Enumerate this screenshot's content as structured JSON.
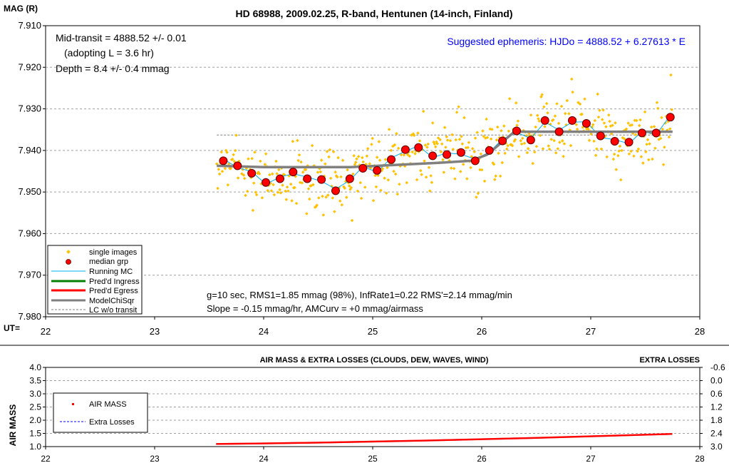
{
  "main_chart": {
    "title": "HD 68988, 2009.02.25, R-band, Hentunen (14-inch, Finland)",
    "y_label": "MAG (R)",
    "x_prefix": "UT=",
    "annotations": {
      "mid_transit": "Mid-transit = 4888.52 +/- 0.01",
      "adopting": "(adopting L = 3.6 hr)",
      "depth": "Depth = 8.4 +/- 0.4 mmag",
      "ephemeris": "Suggested ephemeris: HJDo = 4888.52 + 6.27613 * E",
      "stats1": "g=10 sec, RMS1=1.85 mmag (98%), InfRate1=0.22 RMS'=2.14 mmag/min",
      "stats2": "Slope = -0.15 mmag/hr, AMCurv = +0 mmag/airmass"
    },
    "legend": [
      "single images",
      "median grp",
      "Running MC",
      "Pred'd Ingress",
      "Pred'd Egress",
      "ModelChiSqr",
      "LC w/o transit"
    ],
    "colors": {
      "single": "#ffc000",
      "median": "#ff0000",
      "running": "#00b0f0",
      "ingress": "#008000",
      "egress": "#ff0000",
      "model": "#808080",
      "nolc": "#808080",
      "ephemeris": "#0000ff"
    }
  },
  "chart_data": [
    {
      "type": "scatter",
      "title": "HD 68988, 2009.02.25, R-band, Hentunen (14-inch, Finland)",
      "ylabel": "MAG (R)",
      "xlabel": "UT=",
      "xlim": [
        22,
        28
      ],
      "ylim": [
        7.91,
        7.98
      ],
      "y_inverted": true,
      "x_ticks": [
        "22",
        "23",
        "24",
        "25",
        "26",
        "27",
        "28"
      ],
      "y_ticks": [
        "7.910",
        "7.920",
        "7.930",
        "7.940",
        "7.950",
        "7.960",
        "7.970",
        "7.980"
      ],
      "grid": true,
      "legend_position": "bottom-left",
      "series": [
        {
          "name": "median grp",
          "x": [
            23.63,
            23.76,
            23.89,
            24.02,
            24.15,
            24.27,
            24.4,
            24.53,
            24.66,
            24.79,
            24.91,
            25.04,
            25.17,
            25.3,
            25.42,
            25.55,
            25.68,
            25.81,
            25.94,
            26.07,
            26.19,
            26.32,
            26.45,
            26.58,
            26.71,
            26.83,
            26.96,
            27.09,
            27.22,
            27.35,
            27.47,
            27.6,
            27.73
          ],
          "y": [
            7.9425,
            7.9437,
            7.9455,
            7.9477,
            7.9468,
            7.9452,
            7.9468,
            7.947,
            7.9497,
            7.9468,
            7.9443,
            7.9448,
            7.9422,
            7.9398,
            7.9393,
            7.9413,
            7.941,
            7.9405,
            7.9425,
            7.94,
            7.9377,
            7.9353,
            7.9375,
            7.9328,
            7.9355,
            7.9328,
            7.9335,
            7.9365,
            7.9378,
            7.938,
            7.9358,
            7.9358,
            7.932
          ]
        },
        {
          "name": "ModelChiSqr",
          "x": [
            23.57,
            24.0,
            24.4,
            24.8,
            25.2,
            25.6,
            25.9,
            26.05,
            26.3,
            26.6,
            27.0,
            27.4,
            27.75
          ],
          "y": [
            7.9437,
            7.944,
            7.944,
            7.944,
            7.9435,
            7.943,
            7.9425,
            7.941,
            7.9355,
            7.9355,
            7.9355,
            7.9355,
            7.9355
          ]
        },
        {
          "name": "LC w/o transit",
          "x": [
            23.57,
            27.75
          ],
          "y": [
            7.9363,
            7.9363
          ]
        },
        {
          "name": "single images",
          "x": [],
          "y": []
        },
        {
          "name": "Running MC",
          "x": [],
          "y": []
        },
        {
          "name": "Pred'd Ingress",
          "x": [],
          "y": []
        },
        {
          "name": "Pred'd Egress",
          "x": [],
          "y": []
        }
      ]
    },
    {
      "type": "line",
      "title": "AIR MASS & EXTRA LOSSES (CLOUDS, DEW, WAVES, WIND)",
      "ylabel": "AIR MASS",
      "y2label": "EXTRA LOSSES",
      "xlim": [
        22,
        28
      ],
      "ylim": [
        1.0,
        4.0
      ],
      "y2lim": [
        -0.6,
        3.0
      ],
      "y2_inverted": true,
      "x_ticks": [
        "22",
        "23",
        "24",
        "25",
        "26",
        "27",
        "28"
      ],
      "y_ticks": [
        "4.0",
        "3.5",
        "3.0",
        "2.5",
        "2.0",
        "1.5",
        "1.0"
      ],
      "y2_ticks": [
        "-0.6",
        "0.0",
        "0.6",
        "1.2",
        "1.8",
        "2.4",
        "3.0"
      ],
      "grid": true,
      "legend_position": "left",
      "legend": [
        "AIR MASS",
        "Extra Losses"
      ],
      "series": [
        {
          "name": "AIR MASS",
          "x": [
            23.57,
            24.0,
            24.5,
            25.0,
            25.5,
            26.0,
            26.5,
            27.0,
            27.5,
            27.75
          ],
          "y": [
            1.1,
            1.12,
            1.15,
            1.19,
            1.23,
            1.28,
            1.33,
            1.39,
            1.45,
            1.48
          ]
        }
      ]
    }
  ]
}
